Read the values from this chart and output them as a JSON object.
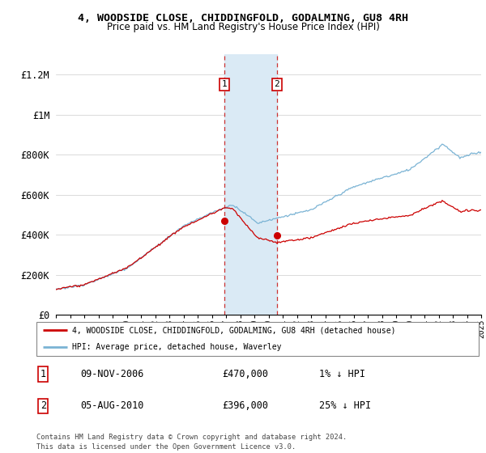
{
  "title": "4, WOODSIDE CLOSE, CHIDDINGFOLD, GODALMING, GU8 4RH",
  "subtitle": "Price paid vs. HM Land Registry's House Price Index (HPI)",
  "ylabel_ticks": [
    "£0",
    "£200K",
    "£400K",
    "£600K",
    "£800K",
    "£1M",
    "£1.2M"
  ],
  "ylim": [
    0,
    1300000
  ],
  "yticks": [
    0,
    200000,
    400000,
    600000,
    800000,
    1000000,
    1200000
  ],
  "sale1_date": 2006.87,
  "sale1_price": 470000,
  "sale2_date": 2010.59,
  "sale2_price": 396000,
  "sale1_text": "09-NOV-2006",
  "sale1_amount": "£470,000",
  "sale1_hpi": "1% ↓ HPI",
  "sale2_text": "05-AUG-2010",
  "sale2_amount": "£396,000",
  "sale2_hpi": "25% ↓ HPI",
  "hpi_color": "#7ab3d4",
  "sale_color": "#cc0000",
  "highlight_color": "#daeaf5",
  "legend_line1": "4, WOODSIDE CLOSE, CHIDDINGFOLD, GODALMING, GU8 4RH (detached house)",
  "legend_line2": "HPI: Average price, detached house, Waverley",
  "footer1": "Contains HM Land Registry data © Crown copyright and database right 2024.",
  "footer2": "This data is licensed under the Open Government Licence v3.0.",
  "xstart": 1995,
  "xend": 2025
}
